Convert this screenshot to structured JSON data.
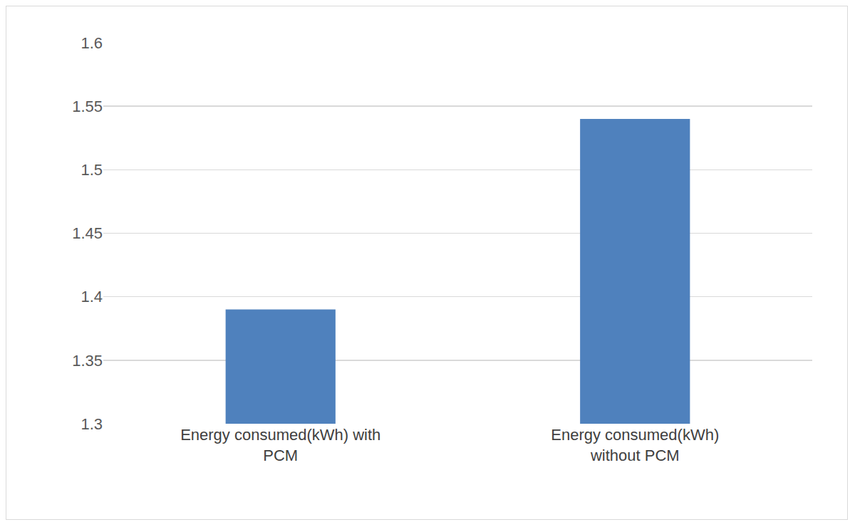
{
  "chart_data": {
    "type": "bar",
    "categories": [
      "Energy consumed(kWh) with PCM",
      "Energy consumed(kWh) without PCM"
    ],
    "values": [
      1.39,
      1.54
    ],
    "color": "#4f81bd",
    "ylim": [
      1.3,
      1.6
    ],
    "yticks": [
      1.3,
      1.35,
      1.4,
      1.45,
      1.5,
      1.55,
      1.6
    ],
    "grid": true
  }
}
